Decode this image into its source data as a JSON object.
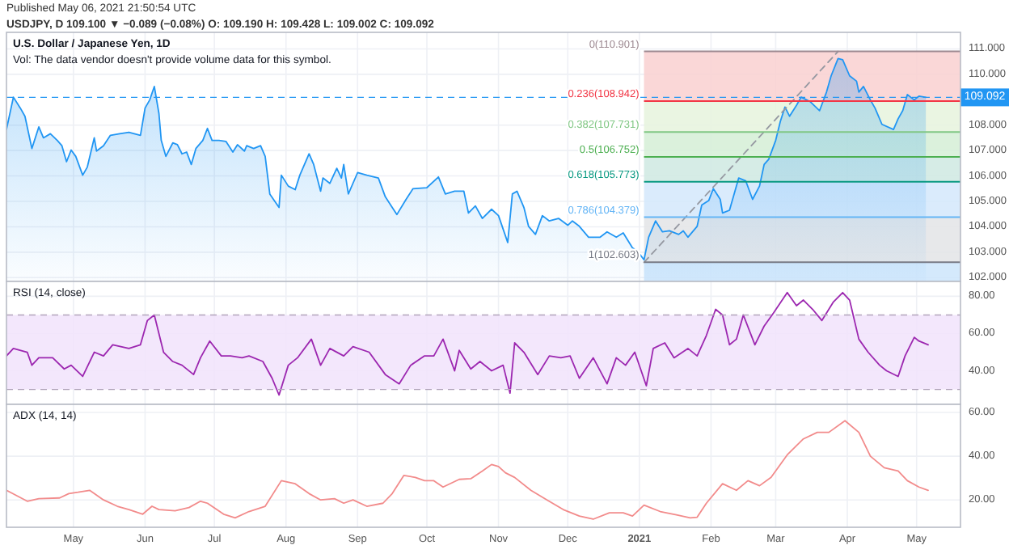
{
  "chart_data": [
    {
      "type": "area",
      "title": "U.S. Dollar / Japanese Yen, 1D",
      "subtitle": "Vol: The data vendor doesn't provide volume data for this symbol.",
      "annotations": [
        "Published May 06, 2021 21:50:54 UTC",
        "USDJPY, D 109.100 ▼ −0.089 (−0.08%) O: 109.190 H: 109.428 L: 109.002 C: 109.092"
      ],
      "x": [
        "2020-04-02",
        "2020-04-05",
        "2020-04-08",
        "2020-04-10",
        "2020-04-13",
        "2020-04-16",
        "2020-04-18",
        "2020-04-21",
        "2020-04-24",
        "2020-04-26",
        "2020-04-28",
        "2020-04-30",
        "2020-05-02",
        "2020-05-05",
        "2020-05-07",
        "2020-05-10",
        "2020-05-11",
        "2020-05-14",
        "2020-05-17",
        "2020-05-21",
        "2020-05-25",
        "2020-05-30",
        "2020-06-01",
        "2020-06-03",
        "2020-06-05",
        "2020-06-07",
        "2020-06-08",
        "2020-06-10",
        "2020-06-13",
        "2020-06-15",
        "2020-06-17",
        "2020-06-19",
        "2020-06-21",
        "2020-06-23",
        "2020-06-26",
        "2020-06-28",
        "2020-06-30",
        "2020-07-03",
        "2020-07-06",
        "2020-07-09",
        "2020-07-11",
        "2020-07-14",
        "2020-07-15",
        "2020-07-18",
        "2020-07-21",
        "2020-07-23",
        "2020-07-25",
        "2020-07-29",
        "2020-07-30",
        "2020-08-02",
        "2020-08-05",
        "2020-08-07",
        "2020-08-11",
        "2020-08-13",
        "2020-08-16",
        "2020-08-17",
        "2020-08-20",
        "2020-08-23",
        "2020-08-25",
        "2020-08-26",
        "2020-08-28",
        "2020-09-01",
        "2020-09-05",
        "2020-09-10",
        "2020-09-13",
        "2020-09-18",
        "2020-09-22",
        "2020-09-25",
        "2020-10-01",
        "2020-10-06",
        "2020-10-09",
        "2020-10-13",
        "2020-10-17",
        "2020-10-19",
        "2020-10-22",
        "2020-10-25",
        "2020-10-29",
        "2020-11-01",
        "2020-11-05",
        "2020-11-07",
        "2020-11-09",
        "2020-11-12",
        "2020-11-14",
        "2020-11-17",
        "2020-11-20",
        "2020-11-23",
        "2020-11-27",
        "2020-12-01",
        "2020-12-03",
        "2020-12-06",
        "2020-12-10",
        "2020-12-15",
        "2020-12-18",
        "2020-12-22",
        "2020-12-25",
        "2020-12-29",
        "2020-12-31",
        "2021-01-03",
        "2021-01-05",
        "2021-01-08",
        "2021-01-11",
        "2021-01-14",
        "2021-01-18",
        "2021-01-20",
        "2021-01-22",
        "2021-01-26",
        "2021-01-28",
        "2021-01-31",
        "2021-02-02",
        "2021-02-05",
        "2021-02-06",
        "2021-02-09",
        "2021-02-11",
        "2021-02-13",
        "2021-02-16",
        "2021-02-19",
        "2021-02-22",
        "2021-02-24",
        "2021-02-26",
        "2021-03-01",
        "2021-03-03",
        "2021-03-05",
        "2021-03-07",
        "2021-03-10",
        "2021-03-12",
        "2021-03-16",
        "2021-03-20",
        "2021-03-23",
        "2021-03-25",
        "2021-03-28",
        "2021-03-30",
        "2021-04-02",
        "2021-04-05",
        "2021-04-06",
        "2021-04-08",
        "2021-04-11",
        "2021-04-13",
        "2021-04-16",
        "2021-04-21",
        "2021-04-23",
        "2021-04-25",
        "2021-04-27",
        "2021-04-30",
        "2021-05-02",
        "2021-05-05"
      ],
      "series": [
        {
          "color": "#2196f3",
          "values": [
            107.83,
            109.1,
            108.67,
            108.35,
            107.08,
            107.93,
            107.5,
            107.66,
            107.4,
            107.19,
            106.56,
            107.02,
            106.77,
            106.03,
            106.35,
            107.5,
            106.98,
            107.19,
            107.6,
            107.66,
            107.72,
            107.6,
            108.67,
            108.99,
            109.52,
            108.46,
            107.4,
            106.77,
            107.3,
            107.23,
            106.87,
            106.94,
            106.45,
            107.08,
            107.4,
            107.87,
            107.4,
            107.4,
            107.36,
            106.94,
            107.23,
            106.98,
            107.19,
            107.08,
            107.19,
            106.77,
            105.29,
            104.76,
            106.03,
            105.6,
            105.46,
            106.03,
            106.87,
            106.45,
            105.4,
            105.92,
            105.71,
            106.3,
            105.92,
            106.45,
            105.29,
            106.13,
            106.03,
            105.92,
            105.18,
            104.48,
            105.08,
            105.5,
            105.54,
            105.96,
            105.29,
            105.4,
            105.4,
            104.54,
            104.82,
            104.33,
            104.69,
            104.44,
            103.38,
            105.29,
            105.4,
            104.76,
            104.02,
            103.7,
            104.44,
            104.23,
            104.33,
            104.06,
            104.23,
            104.02,
            103.59,
            103.59,
            103.8,
            103.59,
            103.76,
            103.17,
            103.06,
            102.7,
            103.59,
            104.23,
            103.8,
            103.84,
            103.7,
            103.84,
            103.59,
            104.02,
            104.86,
            105.03,
            105.5,
            105.08,
            104.54,
            104.65,
            105.29,
            105.92,
            105.81,
            105.08,
            105.6,
            106.45,
            106.66,
            107.4,
            108.14,
            108.71,
            108.35,
            108.78,
            109.1,
            108.92,
            108.57,
            109.3,
            109.94,
            110.62,
            110.57,
            109.94,
            109.73,
            109.3,
            109.52,
            108.99,
            108.67,
            108.03,
            107.83,
            108.25,
            108.57,
            109.2,
            108.99,
            109.14,
            109.09
          ]
        },
        {
          "type": "line",
          "color": "#9598a1",
          "line_style": "dashed",
          "x": [
            "2021-01-03",
            "2021-03-28"
          ],
          "values": [
            102.6,
            110.9
          ]
        }
      ],
      "xlim": [
        "2020-04-02",
        "2021-05-20"
      ],
      "xticks": [
        {
          "value": "2020-05-01",
          "label": null
        },
        {
          "value": "2020-06-01",
          "label": null
        },
        {
          "value": "2020-07-01",
          "label": null
        },
        {
          "value": "2020-08-01",
          "label": null
        },
        {
          "value": "2020-09-01",
          "label": null
        },
        {
          "value": "2020-10-01",
          "label": null
        },
        {
          "value": "2020-11-01",
          "label": null
        },
        {
          "value": "2020-12-01",
          "label": null
        },
        {
          "value": "2021-01-01",
          "label": null
        },
        {
          "value": "2021-02-01",
          "label": null
        },
        {
          "value": "2021-03-01",
          "label": null
        },
        {
          "value": "2021-04-01",
          "label": null
        },
        {
          "value": "2021-05-01",
          "label": null
        }
      ],
      "ylim": [
        101.85,
        111.65
      ],
      "yticks": [
        {
          "value": 102,
          "label": "102.000"
        },
        {
          "value": 103,
          "label": "103.000"
        },
        {
          "value": 104,
          "label": "104.000"
        },
        {
          "value": 105,
          "label": "105.000"
        },
        {
          "value": 106,
          "label": "106.000"
        },
        {
          "value": 107,
          "label": "107.000"
        },
        {
          "value": 108,
          "label": "108.000"
        },
        {
          "value": 110,
          "label": "110.000"
        },
        {
          "value": 111,
          "label": "111.000"
        }
      ],
      "tick_labels": "y",
      "grid": true,
      "bands": [
        {
          "axis": "y",
          "from": 108.942,
          "to": 110.901,
          "color": "#f9d0d0"
        },
        {
          "axis": "y",
          "from": 107.731,
          "to": 108.942,
          "color": "#e6f3dd"
        },
        {
          "axis": "y",
          "from": 106.752,
          "to": 107.731,
          "color": "#d5eed6"
        },
        {
          "axis": "y",
          "from": 105.773,
          "to": 106.752,
          "color": "#cfe9e2"
        },
        {
          "axis": "y",
          "from": 104.379,
          "to": 105.773,
          "color": "#d3e8fb"
        },
        {
          "axis": "y",
          "from": 102.603,
          "to": 104.379,
          "color": "#e3e4e6"
        },
        {
          "axis": "y",
          "from": 101.85,
          "to": 102.603,
          "color": "#cde5fb"
        }
      ],
      "ref_lines": [
        {
          "axis": "y",
          "value": 110.901,
          "label": "0(110.901)",
          "color": "#9e8a92"
        },
        {
          "axis": "y",
          "value": 108.942,
          "label": "0.236(108.942)",
          "color": "#f23645"
        },
        {
          "axis": "y",
          "value": 107.731,
          "label": "0.382(107.731)",
          "color": "#81c784"
        },
        {
          "axis": "y",
          "value": 106.752,
          "label": "0.5(106.752)",
          "color": "#4caf50"
        },
        {
          "axis": "y",
          "value": 105.773,
          "label": "0.618(105.773)",
          "color": "#089981"
        },
        {
          "axis": "y",
          "value": 104.379,
          "label": "0.786(104.379)",
          "color": "#64b5f6"
        },
        {
          "axis": "y",
          "value": 102.603,
          "label": "1(102.603)",
          "color": "#787b86"
        },
        {
          "axis": "y",
          "value": 109.092,
          "label": "109.092",
          "color": "#2196f3",
          "line_style": "dashed"
        }
      ]
    },
    {
      "type": "line",
      "title": "RSI (14, close)",
      "x": [
        "2020-04-02",
        "2020-04-05",
        "2020-04-11",
        "2020-04-13",
        "2020-04-16",
        "2020-04-22",
        "2020-04-27",
        "2020-04-30",
        "2020-05-05",
        "2020-05-10",
        "2020-05-14",
        "2020-05-18",
        "2020-05-25",
        "2020-05-30",
        "2020-06-02",
        "2020-06-05",
        "2020-06-09",
        "2020-06-13",
        "2020-06-17",
        "2020-06-22",
        "2020-06-25",
        "2020-06-29",
        "2020-07-04",
        "2020-07-08",
        "2020-07-13",
        "2020-07-16",
        "2020-07-22",
        "2020-07-26",
        "2020-07-29",
        "2020-08-02",
        "2020-08-06",
        "2020-08-12",
        "2020-08-16",
        "2020-08-20",
        "2020-08-26",
        "2020-08-30",
        "2020-09-06",
        "2020-09-13",
        "2020-09-19",
        "2020-09-24",
        "2020-09-30",
        "2020-10-04",
        "2020-10-08",
        "2020-10-13",
        "2020-10-15",
        "2020-10-20",
        "2020-10-24",
        "2020-10-29",
        "2020-11-03",
        "2020-11-06",
        "2020-11-08",
        "2020-11-12",
        "2020-11-18",
        "2020-11-23",
        "2020-11-28",
        "2020-12-02",
        "2020-12-06",
        "2020-12-12",
        "2020-12-18",
        "2020-12-22",
        "2020-12-26",
        "2020-12-30",
        "2021-01-04",
        "2021-01-07",
        "2021-01-12",
        "2021-01-16",
        "2021-01-22",
        "2021-01-26",
        "2021-01-30",
        "2021-02-03",
        "2021-02-06",
        "2021-02-09",
        "2021-02-12",
        "2021-02-15",
        "2021-02-20",
        "2021-02-24",
        "2021-02-28",
        "2021-03-06",
        "2021-03-10",
        "2021-03-13",
        "2021-03-17",
        "2021-03-21",
        "2021-03-26",
        "2021-03-30",
        "2021-04-02",
        "2021-04-06",
        "2021-04-10",
        "2021-04-15",
        "2021-04-18",
        "2021-04-23",
        "2021-04-26",
        "2021-04-30",
        "2021-05-02",
        "2021-05-06"
      ],
      "series": [
        {
          "color": "#9c27b0",
          "values": [
            48,
            52,
            50,
            43,
            47,
            47,
            41,
            43,
            37,
            50,
            48,
            54,
            52,
            54,
            67,
            70,
            50,
            45,
            43,
            38,
            47,
            56,
            48,
            48,
            47,
            48,
            45,
            36,
            27,
            43,
            47,
            57,
            43,
            52,
            48,
            53,
            50,
            38,
            33,
            43,
            48,
            48,
            57,
            40,
            51,
            41,
            45,
            40,
            43,
            28,
            55,
            50,
            38,
            48,
            47,
            48,
            36,
            47,
            33,
            47,
            43,
            50,
            32,
            52,
            55,
            47,
            52,
            48,
            59,
            73,
            70,
            54,
            57,
            70,
            54,
            64,
            71,
            82,
            75,
            78,
            73,
            67,
            77,
            82,
            78,
            57,
            50,
            43,
            40,
            37,
            48,
            58,
            56,
            54
          ]
        }
      ],
      "xlim": [
        "2020-04-02",
        "2021-05-20"
      ],
      "xticks": [
        {
          "value": "2020-05-01",
          "label": null
        },
        {
          "value": "2020-06-01",
          "label": null
        },
        {
          "value": "2020-07-01",
          "label": null
        },
        {
          "value": "2020-08-01",
          "label": null
        },
        {
          "value": "2020-09-01",
          "label": null
        },
        {
          "value": "2020-10-01",
          "label": null
        },
        {
          "value": "2020-11-01",
          "label": null
        },
        {
          "value": "2020-12-01",
          "label": null
        },
        {
          "value": "2021-01-01",
          "label": null
        },
        {
          "value": "2021-02-01",
          "label": null
        },
        {
          "value": "2021-03-01",
          "label": null
        },
        {
          "value": "2021-04-01",
          "label": null
        },
        {
          "value": "2021-05-01",
          "label": null
        }
      ],
      "ylim": [
        22,
        88
      ],
      "yticks": [
        {
          "value": 40,
          "label": "40.00"
        },
        {
          "value": 60,
          "label": "60.00"
        },
        {
          "value": 80,
          "label": "80.00"
        }
      ],
      "tick_labels": "y",
      "grid": true,
      "bands": [
        {
          "axis": "y",
          "from": 30,
          "to": 70,
          "color": "#f1e3fb"
        }
      ],
      "ref_lines": [
        {
          "axis": "y",
          "value": 70,
          "color": "#b2a4bb",
          "line_style": "dashed"
        },
        {
          "axis": "y",
          "value": 30,
          "color": "#b2a4bb",
          "line_style": "dashed"
        }
      ]
    },
    {
      "type": "line",
      "title": "ADX (14, 14)",
      "x": [
        "2020-04-02",
        "2020-04-11",
        "2020-04-16",
        "2020-04-25",
        "2020-04-29",
        "2020-05-03",
        "2020-05-08",
        "2020-05-14",
        "2020-05-20",
        "2020-05-25",
        "2020-05-31",
        "2020-06-04",
        "2020-06-07",
        "2020-06-14",
        "2020-06-20",
        "2020-06-25",
        "2020-06-28",
        "2020-07-05",
        "2020-07-10",
        "2020-07-16",
        "2020-07-23",
        "2020-07-30",
        "2020-08-05",
        "2020-08-11",
        "2020-08-16",
        "2020-08-22",
        "2020-08-26",
        "2020-08-30",
        "2020-09-05",
        "2020-09-12",
        "2020-09-16",
        "2020-09-21",
        "2020-09-26",
        "2020-09-30",
        "2020-10-04",
        "2020-10-08",
        "2020-10-15",
        "2020-10-20",
        "2020-10-25",
        "2020-10-29",
        "2020-11-01",
        "2020-11-04",
        "2020-11-08",
        "2020-11-15",
        "2020-11-22",
        "2020-11-29",
        "2020-12-06",
        "2020-12-12",
        "2020-12-19",
        "2020-12-25",
        "2020-12-29",
        "2021-01-03",
        "2021-01-10",
        "2021-01-17",
        "2021-01-23",
        "2021-01-26",
        "2021-01-30",
        "2021-02-06",
        "2021-02-12",
        "2021-02-17",
        "2021-02-22",
        "2021-02-27",
        "2021-03-06",
        "2021-03-13",
        "2021-03-19",
        "2021-03-24",
        "2021-03-31",
        "2021-04-06",
        "2021-04-11",
        "2021-04-17",
        "2021-04-23",
        "2021-04-27",
        "2021-05-02",
        "2021-05-06"
      ],
      "series": [
        {
          "color": "#f28b8b",
          "values": [
            24.4,
            19.4,
            20.6,
            20.9,
            22.9,
            23.5,
            24.4,
            20.0,
            17.1,
            15.6,
            13.5,
            17.1,
            15.6,
            15.0,
            16.5,
            19.4,
            18.5,
            13.5,
            11.8,
            14.7,
            17.1,
            28.8,
            27.4,
            22.9,
            20.0,
            20.6,
            18.5,
            20.0,
            17.1,
            18.5,
            22.9,
            31.2,
            30.3,
            28.8,
            28.8,
            25.9,
            29.4,
            29.7,
            33.2,
            36.2,
            35.3,
            32.4,
            30.3,
            24.4,
            20.0,
            15.6,
            12.6,
            11.2,
            14.1,
            14.1,
            12.6,
            17.6,
            14.7,
            13.2,
            11.8,
            12.1,
            18.5,
            27.4,
            24.4,
            28.8,
            26.5,
            30.3,
            40.6,
            47.9,
            50.9,
            50.9,
            56.2,
            50.9,
            40.0,
            34.7,
            33.2,
            28.8,
            25.9,
            24.4
          ]
        }
      ],
      "xlim": [
        "2020-04-02",
        "2021-05-20"
      ],
      "xticks": [
        {
          "value": "2020-05-01",
          "label": "May"
        },
        {
          "value": "2020-06-01",
          "label": "Jun"
        },
        {
          "value": "2020-07-01",
          "label": "Jul"
        },
        {
          "value": "2020-08-01",
          "label": "Aug"
        },
        {
          "value": "2020-09-01",
          "label": "Sep"
        },
        {
          "value": "2020-10-01",
          "label": "Oct"
        },
        {
          "value": "2020-11-01",
          "label": "Nov"
        },
        {
          "value": "2020-12-01",
          "label": "Dec"
        },
        {
          "value": "2021-01-01",
          "label": "2021"
        },
        {
          "value": "2021-02-01",
          "label": "Feb"
        },
        {
          "value": "2021-03-01",
          "label": "Mar"
        },
        {
          "value": "2021-04-01",
          "label": "Apr"
        },
        {
          "value": "2021-05-01",
          "label": "May"
        }
      ],
      "ylim": [
        7.5,
        63.7
      ],
      "yticks": [
        {
          "value": 20,
          "label": "20.00"
        },
        {
          "value": 40,
          "label": "40.00"
        },
        {
          "value": 60,
          "label": "60.00"
        }
      ],
      "grid": true
    }
  ]
}
